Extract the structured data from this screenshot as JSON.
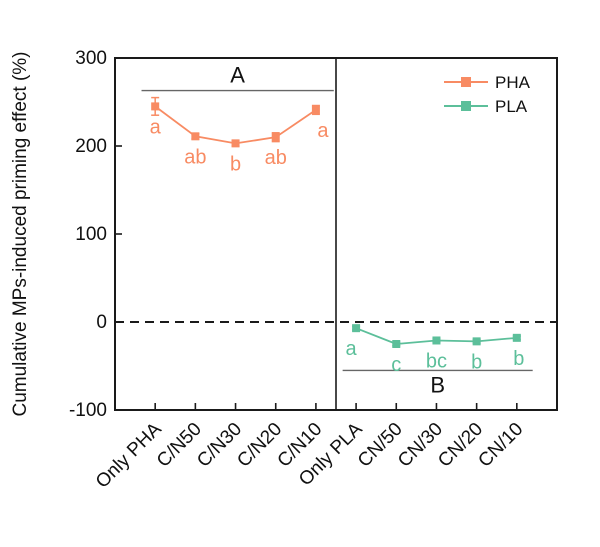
{
  "chart_data": {
    "type": "line",
    "title": "",
    "xlabel": "",
    "ylabel": "Cumulative MPs-induced priming effect (%)",
    "ylim": [
      -100,
      300
    ],
    "yticks": [
      300,
      200,
      100,
      0,
      -100
    ],
    "grid": false,
    "zero_line": {
      "value": 0,
      "style": "dashed",
      "color": "#1a1a1a"
    },
    "legend": {
      "position": "top-right",
      "entries": [
        {
          "label": "PHA",
          "color": "#F88B63"
        },
        {
          "label": "PLA",
          "color": "#5CBF9A"
        }
      ]
    },
    "panels": [
      {
        "name": "PHA",
        "color": "#F88B63",
        "categories": [
          "Only PHA",
          "C/N50",
          "C/N30",
          "C/N20",
          "C/N10"
        ],
        "values": [
          245,
          211,
          203,
          210,
          241
        ],
        "errors": [
          10,
          3,
          3,
          5,
          5
        ],
        "sig_letters": [
          "a",
          "ab",
          "b",
          "ab",
          "a"
        ],
        "sig_letter_dx": [
          0,
          0,
          0,
          0,
          7
        ],
        "group_label": "A",
        "group_line_value": 263,
        "group_line_span": [
          0.12,
          0.99
        ],
        "group_label_side": "above"
      },
      {
        "name": "PLA",
        "color": "#5CBF9A",
        "categories": [
          "Only PLA",
          "CN/50",
          "CN/30",
          "CN/20",
          "CN/10"
        ],
        "values": [
          -7,
          -25,
          -21,
          -22,
          -18
        ],
        "errors": [
          2,
          2,
          2,
          2,
          2
        ],
        "sig_letters": [
          "a",
          "c",
          "bc",
          "b",
          "b"
        ],
        "sig_letter_dx": [
          -5,
          0,
          0,
          0,
          2
        ],
        "group_label": "B",
        "group_line_value": -55,
        "group_line_span": [
          0.03,
          0.89
        ],
        "group_label_side": "below"
      }
    ],
    "colors": {
      "axis": "#1a1a1a",
      "text": "#111111",
      "annotation_line": "#666666",
      "pha": "#F88B63",
      "pla": "#5CBF9A"
    }
  }
}
